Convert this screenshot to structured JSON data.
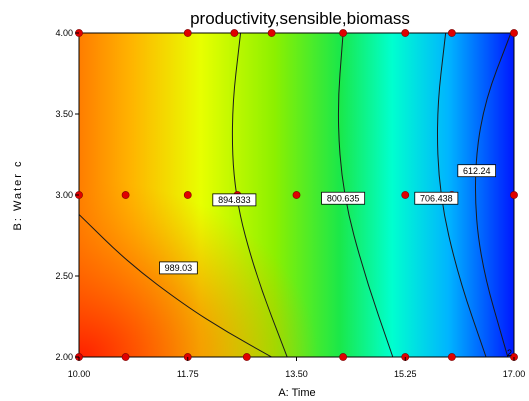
{
  "chart_data": {
    "type": "contour",
    "title": "productivity,sensible,biomass",
    "xlabel": "A: Time",
    "ylabel": "B: Water c",
    "xlim": [
      10.0,
      17.0
    ],
    "ylim": [
      2.0,
      4.0
    ],
    "x_ticks": [
      "10.00",
      "11.75",
      "13.50",
      "15.25",
      "17.00"
    ],
    "y_ticks": [
      "2.00",
      "2.50",
      "3.00",
      "3.50",
      "4.00"
    ],
    "colormap": [
      "#ff2a00",
      "#ffb000",
      "#e8ff00",
      "#59e600",
      "#00ffd8",
      "#00a8ff",
      "#0018ff"
    ],
    "contours": [
      {
        "label": "989.03",
        "label_at": [
          11.6,
          2.55
        ],
        "points": [
          [
            10.0,
            2.88
          ],
          [
            10.8,
            2.58
          ],
          [
            11.7,
            2.32
          ],
          [
            12.4,
            2.15
          ],
          [
            13.1,
            2.0
          ]
        ]
      },
      {
        "label": "894.833",
        "label_at": [
          12.5,
          2.97
        ],
        "points": [
          [
            12.6,
            4.0
          ],
          [
            12.45,
            3.5
          ],
          [
            12.5,
            3.0
          ],
          [
            12.85,
            2.5
          ],
          [
            13.35,
            2.0
          ]
        ]
      },
      {
        "label": "800.635",
        "label_at": [
          14.25,
          2.98
        ],
        "points": [
          [
            14.25,
            4.0
          ],
          [
            14.15,
            3.5
          ],
          [
            14.25,
            3.0
          ],
          [
            14.6,
            2.5
          ],
          [
            15.05,
            2.0
          ]
        ]
      },
      {
        "label": "706.438",
        "label_at": [
          15.75,
          2.98
        ],
        "points": [
          [
            15.9,
            4.0
          ],
          [
            15.75,
            3.5
          ],
          [
            15.8,
            3.0
          ],
          [
            16.1,
            2.5
          ],
          [
            16.55,
            2.0
          ]
        ]
      },
      {
        "label": "612.24",
        "label_at": [
          16.4,
          3.15
        ],
        "points": [
          [
            16.95,
            4.0
          ],
          [
            16.5,
            3.55
          ],
          [
            16.35,
            3.1
          ],
          [
            16.45,
            2.6
          ],
          [
            16.9,
            2.0
          ]
        ]
      }
    ],
    "design_points": [
      [
        10.0,
        4.0
      ],
      [
        11.75,
        4.0
      ],
      [
        12.5,
        4.0
      ],
      [
        13.1,
        4.0
      ],
      [
        14.25,
        4.0
      ],
      [
        15.25,
        4.0
      ],
      [
        16.0,
        4.0
      ],
      [
        17.0,
        4.0
      ],
      [
        10.0,
        3.0
      ],
      [
        10.75,
        3.0
      ],
      [
        11.75,
        3.0
      ],
      [
        12.55,
        3.0
      ],
      [
        13.5,
        3.0
      ],
      [
        15.25,
        3.0
      ],
      [
        16.0,
        3.0
      ],
      [
        17.0,
        3.0
      ],
      [
        10.0,
        2.0
      ],
      [
        10.75,
        2.0
      ],
      [
        11.75,
        2.0
      ],
      [
        12.7,
        2.0
      ],
      [
        14.25,
        2.0
      ],
      [
        15.25,
        2.0
      ],
      [
        16.0,
        2.0
      ],
      [
        17.0,
        2.0
      ]
    ],
    "corner_text": "2",
    "point_color": "#e00000"
  }
}
